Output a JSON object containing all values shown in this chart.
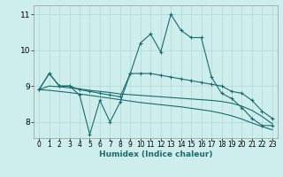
{
  "xlabel": "Humidex (Indice chaleur)",
  "bg_color": "#ceeeed",
  "grid_color": "#aed8d6",
  "line_color": "#1a6b6b",
  "xlim": [
    -0.5,
    23.5
  ],
  "ylim": [
    7.55,
    11.25
  ],
  "yticks": [
    8,
    9,
    10,
    11
  ],
  "xticks": [
    0,
    1,
    2,
    3,
    4,
    5,
    6,
    7,
    8,
    9,
    10,
    11,
    12,
    13,
    14,
    15,
    16,
    17,
    18,
    19,
    20,
    21,
    22,
    23
  ],
  "line1_x": [
    0,
    1,
    2,
    3,
    4,
    5,
    6,
    7,
    8,
    9,
    10,
    11,
    12,
    13,
    14,
    15,
    16,
    17,
    18,
    19,
    20,
    21,
    22,
    23
  ],
  "line1_y": [
    8.9,
    9.35,
    9.0,
    9.0,
    8.75,
    7.65,
    8.6,
    8.0,
    8.55,
    9.35,
    10.2,
    10.45,
    9.95,
    11.0,
    10.55,
    10.35,
    10.35,
    9.25,
    8.8,
    8.65,
    8.4,
    8.1,
    7.9,
    7.9
  ],
  "line2_x": [
    0,
    1,
    2,
    3,
    4,
    5,
    6,
    7,
    8,
    9,
    10,
    11,
    12,
    13,
    14,
    15,
    16,
    17,
    18,
    19,
    20,
    21,
    22,
    23
  ],
  "line2_y": [
    8.9,
    9.35,
    9.0,
    9.0,
    8.9,
    8.85,
    8.8,
    8.75,
    8.7,
    9.35,
    9.35,
    9.35,
    9.3,
    9.25,
    9.2,
    9.15,
    9.1,
    9.05,
    9.0,
    8.85,
    8.8,
    8.6,
    8.3,
    8.1
  ],
  "line3_x": [
    0,
    1,
    2,
    3,
    4,
    5,
    6,
    7,
    8,
    9,
    10,
    11,
    12,
    13,
    14,
    15,
    16,
    17,
    18,
    19,
    20,
    21,
    22,
    23
  ],
  "line3_y": [
    8.9,
    9.0,
    8.98,
    8.95,
    8.92,
    8.88,
    8.85,
    8.82,
    8.78,
    8.76,
    8.74,
    8.72,
    8.7,
    8.68,
    8.66,
    8.64,
    8.62,
    8.6,
    8.57,
    8.52,
    8.44,
    8.32,
    8.15,
    7.95
  ],
  "line4_x": [
    0,
    1,
    2,
    3,
    4,
    5,
    6,
    7,
    8,
    9,
    10,
    11,
    12,
    13,
    14,
    15,
    16,
    17,
    18,
    19,
    20,
    21,
    22,
    23
  ],
  "line4_y": [
    8.9,
    8.88,
    8.85,
    8.82,
    8.78,
    8.74,
    8.7,
    8.66,
    8.62,
    8.58,
    8.54,
    8.51,
    8.48,
    8.45,
    8.42,
    8.38,
    8.34,
    8.3,
    8.24,
    8.17,
    8.08,
    7.97,
    7.87,
    7.78
  ]
}
